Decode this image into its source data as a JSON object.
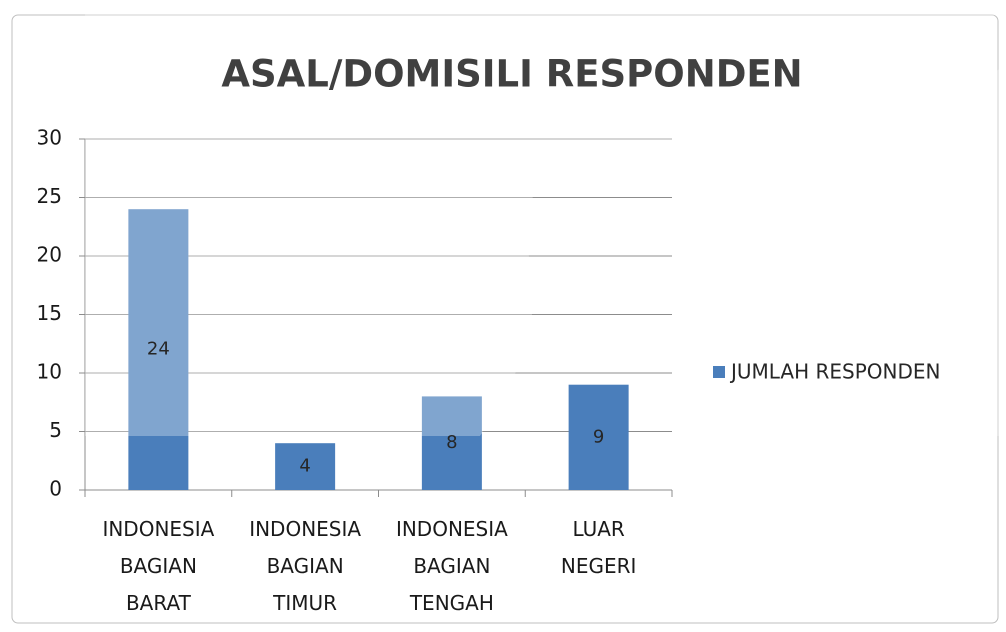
{
  "chart_data": {
    "type": "bar",
    "title": "ASAL/DOMISILI RESPONDEN",
    "categories": [
      "INDONESIA BAGIAN BARAT",
      "INDONESIA BAGIAN TIMUR",
      "INDONESIA BAGIAN TENGAH",
      "LUAR NEGERI"
    ],
    "series": [
      {
        "name": "JUMLAH RESPONDEN",
        "color": "#4a7ebb",
        "values": [
          24,
          4,
          8,
          9
        ]
      }
    ],
    "ylim": [
      0,
      30
    ],
    "yticks": [
      0,
      5,
      10,
      15,
      20,
      25,
      30
    ],
    "grid": true,
    "legend": "right"
  }
}
